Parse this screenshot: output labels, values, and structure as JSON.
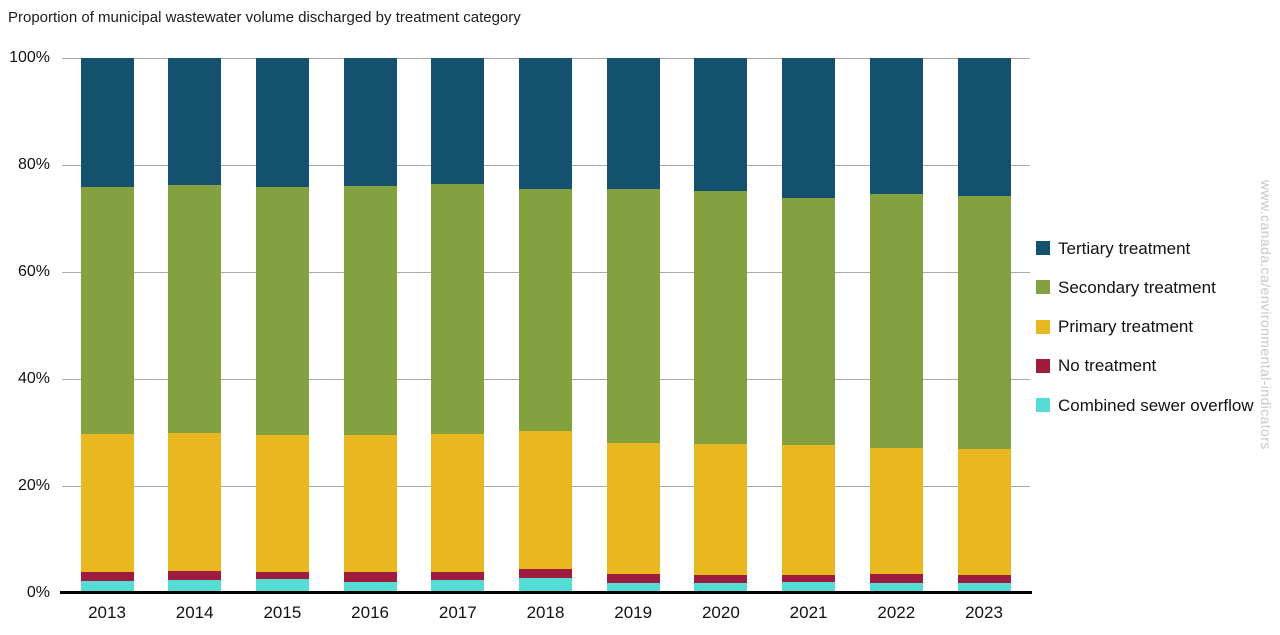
{
  "chart": {
    "title": "Proportion of municipal wastewater volume discharged by treatment category"
  },
  "watermark": "www.canada.ca/environmental-indicators",
  "colors": {
    "tertiary": "#14516F",
    "secondary": "#84A140",
    "primary": "#E9B720",
    "no_treatment": "#9E1C3E",
    "combined_sewer_overflow": "#55DCD4",
    "gridline": "#A9A9A9",
    "axis": "#000000",
    "watermark_text": "#C8C8C8"
  },
  "chart_data": {
    "type": "bar",
    "stacked": true,
    "normalized_to_100_percent": true,
    "title": "Proportion of municipal wastewater volume discharged by treatment category",
    "xlabel": "",
    "ylabel": "",
    "ylim": [
      0,
      100
    ],
    "grid": true,
    "legend_position": "right",
    "categories": [
      "2013",
      "2014",
      "2015",
      "2016",
      "2017",
      "2018",
      "2019",
      "2020",
      "2021",
      "2022",
      "2023"
    ],
    "series": [
      {
        "name": "Combined sewer overflow",
        "color": "#55DCD4",
        "values": [
          2.2,
          2.4,
          2.6,
          2.0,
          2.5,
          2.9,
          1.9,
          1.8,
          2.0,
          1.9,
          1.9
        ]
      },
      {
        "name": "No treatment",
        "color": "#9E1C3E",
        "values": [
          1.7,
          1.8,
          1.4,
          1.9,
          1.5,
          1.6,
          1.7,
          1.6,
          1.4,
          1.7,
          1.5
        ]
      },
      {
        "name": "Primary treatment",
        "color": "#E9B720",
        "values": [
          25.9,
          25.7,
          25.6,
          25.7,
          25.7,
          25.7,
          24.5,
          24.5,
          24.2,
          23.5,
          23.5
        ]
      },
      {
        "name": "Secondary treatment",
        "color": "#84A140",
        "values": [
          46.1,
          46.4,
          46.3,
          46.5,
          46.7,
          45.4,
          47.4,
          47.2,
          46.3,
          47.4,
          47.4
        ]
      },
      {
        "name": "Tertiary treatment",
        "color": "#14516F",
        "values": [
          24.1,
          23.7,
          24.1,
          23.9,
          23.6,
          24.4,
          24.5,
          24.9,
          26.1,
          25.5,
          25.7
        ]
      }
    ],
    "legend_order": [
      "Tertiary treatment",
      "Secondary treatment",
      "Primary treatment",
      "No treatment",
      "Combined sewer overflow"
    ],
    "y_axis_ticks": [
      "0%",
      "20%",
      "40%",
      "60%",
      "80%",
      "100%"
    ]
  }
}
